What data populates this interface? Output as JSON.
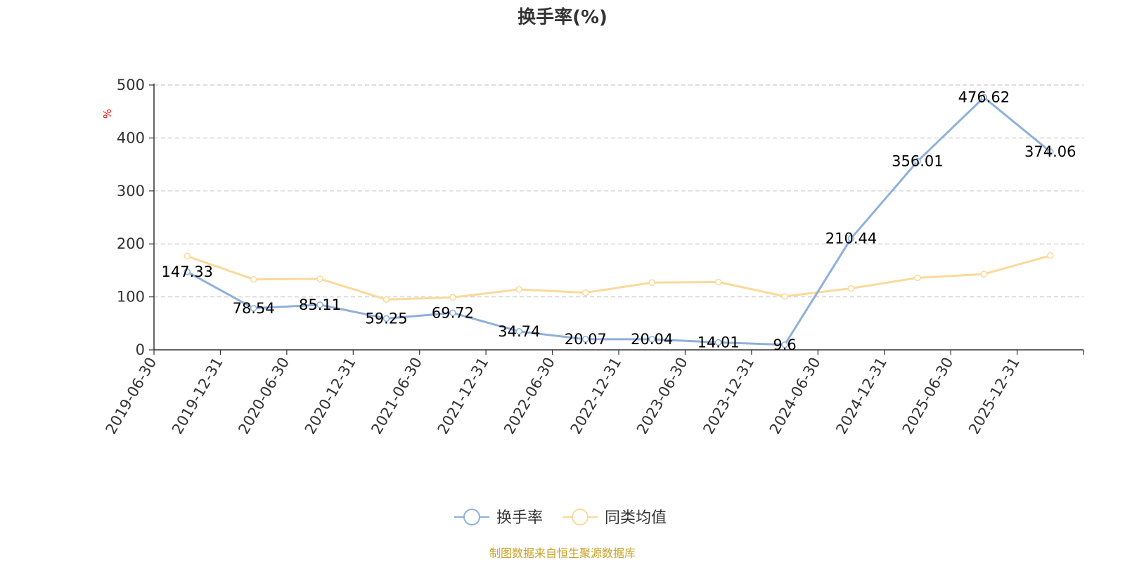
{
  "chart_data": {
    "type": "line",
    "title": "换手率(%)",
    "ylabel": "%",
    "xlabel": "",
    "ylim": [
      0,
      500
    ],
    "yticks": [
      0,
      100,
      200,
      300,
      400,
      500
    ],
    "grid": true,
    "legend_position": "bottom",
    "categories": [
      "2019-06-30",
      "2019-12-31",
      "2020-06-30",
      "2020-12-31",
      "2021-06-30",
      "2021-12-31",
      "2022-06-30",
      "2022-12-31",
      "2023-06-30",
      "2023-12-31",
      "2024-06-30",
      "2024-12-31",
      "2025-06-30",
      "2025-12-31"
    ],
    "series": [
      {
        "name": "换手率",
        "color": "#8fb0d9",
        "values": [
          147.33,
          78.54,
          85.11,
          59.25,
          69.72,
          34.74,
          20.07,
          20.04,
          14.01,
          9.6,
          210.44,
          356.01,
          476.62,
          374.06
        ],
        "labels": [
          "147.33",
          "78.54",
          "85.11",
          "59.25",
          "69.72",
          "34.74",
          "20.07",
          "20.04",
          "14.01",
          "9.6",
          "210.44",
          "356.01",
          "476.62",
          "374.06"
        ]
      },
      {
        "name": "同类均值",
        "color": "#fbd99a",
        "values": [
          177,
          133,
          134,
          95,
          99,
          114,
          108,
          127,
          128,
          101,
          116,
          136,
          143,
          178
        ]
      }
    ]
  },
  "footer": {
    "source": "制图数据来自恒生聚源数据库"
  }
}
